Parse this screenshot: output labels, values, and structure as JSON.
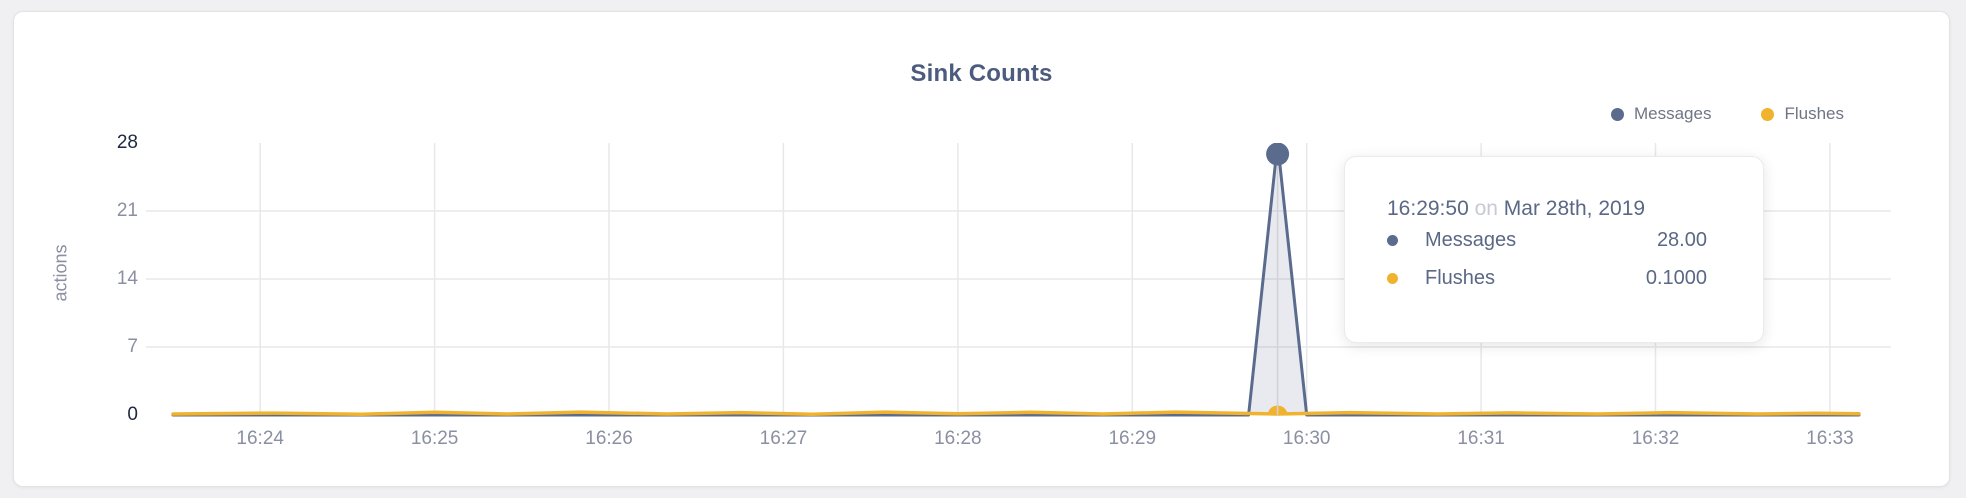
{
  "colors": {
    "page_bg": "#f0f0f2",
    "card_bg": "#ffffff",
    "grid": "#e8e8ea",
    "crosshair": "#d2d2d6",
    "axis_text": "#8a90a2",
    "axis_text_highlight": "#1f2840",
    "title_text": "#4d5c7e",
    "messages": "#5b6b8e",
    "flushes": "#f0b32e"
  },
  "legend": {
    "items": [
      {
        "label": "Messages",
        "color": "#5b6b8e"
      },
      {
        "label": "Flushes",
        "color": "#f0b32e"
      }
    ]
  },
  "tooltip": {
    "time": "16:29:50",
    "preposition": "on",
    "date": "Mar 28th, 2019",
    "rows": [
      {
        "label": "Messages",
        "value": "28.00",
        "color": "#5b6b8e"
      },
      {
        "label": "Flushes",
        "value": "0.1000",
        "color": "#f0b32e"
      }
    ]
  },
  "chart_data": {
    "type": "line",
    "title": "Sink Counts",
    "ylabel": "actions",
    "xlabel": "",
    "ylim": [
      0,
      28
    ],
    "x_range": [
      "16:23:30",
      "16:33:10"
    ],
    "grid": true,
    "legend_position": "top-right",
    "y_ticks": [
      {
        "value": 0,
        "label": "0",
        "highlighted": true,
        "gridline": false
      },
      {
        "value": 7,
        "label": "7",
        "highlighted": false,
        "gridline": true
      },
      {
        "value": 14,
        "label": "14",
        "highlighted": false,
        "gridline": true
      },
      {
        "value": 21,
        "label": "21",
        "highlighted": false,
        "gridline": true
      },
      {
        "value": 28,
        "label": "28",
        "highlighted": true,
        "gridline": false
      }
    ],
    "x_ticks": [
      {
        "time": "16:24:00",
        "label": "16:24"
      },
      {
        "time": "16:25:00",
        "label": "16:25"
      },
      {
        "time": "16:26:00",
        "label": "16:26"
      },
      {
        "time": "16:27:00",
        "label": "16:27"
      },
      {
        "time": "16:28:00",
        "label": "16:28"
      },
      {
        "time": "16:29:00",
        "label": "16:29"
      },
      {
        "time": "16:30:00",
        "label": "16:30"
      },
      {
        "time": "16:31:00",
        "label": "16:31"
      },
      {
        "time": "16:32:00",
        "label": "16:32"
      },
      {
        "time": "16:33:00",
        "label": "16:33"
      }
    ],
    "series": [
      {
        "name": "Messages",
        "color": "#5b6b8e",
        "fill": "rgba(91,107,142,0.14)",
        "points": [
          [
            "16:23:30",
            0
          ],
          [
            "16:29:40",
            0
          ],
          [
            "16:29:50",
            28
          ],
          [
            "16:30:00",
            0
          ],
          [
            "16:33:10",
            0
          ]
        ]
      },
      {
        "name": "Flushes",
        "color": "#f0b32e",
        "points": [
          [
            "16:23:30",
            0.1
          ],
          [
            "16:24:05",
            0.2
          ],
          [
            "16:24:35",
            0.08
          ],
          [
            "16:25:00",
            0.28
          ],
          [
            "16:25:25",
            0.1
          ],
          [
            "16:25:50",
            0.3
          ],
          [
            "16:26:20",
            0.1
          ],
          [
            "16:26:45",
            0.25
          ],
          [
            "16:27:10",
            0.08
          ],
          [
            "16:27:35",
            0.3
          ],
          [
            "16:28:00",
            0.12
          ],
          [
            "16:28:25",
            0.28
          ],
          [
            "16:28:50",
            0.1
          ],
          [
            "16:29:15",
            0.3
          ],
          [
            "16:29:50",
            0.1
          ],
          [
            "16:30:15",
            0.25
          ],
          [
            "16:30:45",
            0.1
          ],
          [
            "16:31:10",
            0.22
          ],
          [
            "16:31:40",
            0.1
          ],
          [
            "16:32:05",
            0.25
          ],
          [
            "16:32:35",
            0.1
          ],
          [
            "16:32:55",
            0.18
          ],
          [
            "16:33:10",
            0.12
          ]
        ]
      }
    ],
    "hover": {
      "t": "16:29:50",
      "points": [
        {
          "series": "Messages",
          "value": 28
        },
        {
          "series": "Flushes",
          "value": 0.1
        }
      ]
    }
  }
}
